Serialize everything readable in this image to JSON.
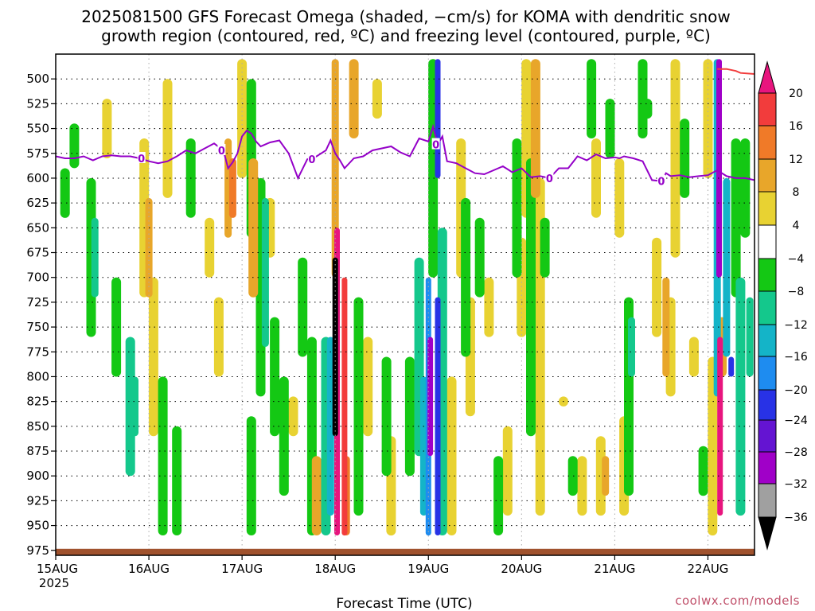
{
  "chart_data": {
    "type": "heatmap",
    "title_lines": [
      "2025081500 GFS Forecast Omega (shaded, −cm/s) for KOMA with dendritic snow",
      "growth region (contoured, red, ºC) and freezing level (contoured, purple, ºC)"
    ],
    "xlabel": "Forecast Time (UTC)",
    "x_ticks": [
      "15AUG",
      "16AUG",
      "17AUG",
      "18AUG",
      "19AUG",
      "20AUG",
      "21AUG",
      "22AUG"
    ],
    "x_year": "2025",
    "x_range_days": [
      0,
      7.5
    ],
    "y_ticks": [
      500,
      525,
      550,
      575,
      600,
      625,
      650,
      675,
      700,
      725,
      750,
      775,
      800,
      825,
      850,
      875,
      900,
      925,
      950,
      975
    ],
    "y_range_hpa": [
      475,
      980
    ],
    "y_unit": "hPa",
    "colorbar": {
      "labels": [
        "20",
        "16",
        "12",
        "8",
        "4",
        "−4",
        "−8",
        "−12",
        "−16",
        "−20",
        "−24",
        "−28",
        "−32",
        "−36"
      ],
      "levels": [
        20,
        16,
        12,
        8,
        4,
        -4,
        -8,
        -12,
        -16,
        -20,
        -24,
        -28,
        -32,
        -36
      ],
      "colors": {
        "gt20": "#e8157e",
        "16_20": "#f23c3c",
        "12_16": "#f07a28",
        "8_12": "#e8a62a",
        "4_8": "#e8d232",
        "m4_4": "#ffffff",
        "m8_m4": "#14c814",
        "m12_m8": "#14c88c",
        "m16_m12": "#14b4c8",
        "m20_m16": "#1e8cf0",
        "m24_m20": "#2832e6",
        "m28_m24": "#6414d2",
        "m32_m28": "#a000c8",
        "m36_m32": "#a0a0a0",
        "lt_m36": "#000000"
      }
    },
    "freezing_level": {
      "label": "0",
      "color": "#9400c8",
      "days": [
        0,
        0.1,
        0.2,
        0.3,
        0.4,
        0.5,
        0.6,
        0.7,
        0.8,
        0.9,
        1.0,
        1.1,
        1.2,
        1.3,
        1.4,
        1.5,
        1.6,
        1.7,
        1.8,
        1.85,
        1.9,
        1.95,
        2.0,
        2.05,
        2.1,
        2.15,
        2.2,
        2.3,
        2.4,
        2.5,
        2.6,
        2.7,
        2.8,
        2.9,
        2.95,
        3.0,
        3.05,
        3.1,
        3.2,
        3.3,
        3.4,
        3.5,
        3.6,
        3.7,
        3.8,
        3.9,
        4.0,
        4.05,
        4.1,
        4.15,
        4.2,
        4.3,
        4.4,
        4.5,
        4.6,
        4.7,
        4.8,
        4.9,
        5.0,
        5.1,
        5.2,
        5.3,
        5.4,
        5.5,
        5.6,
        5.7,
        5.8,
        5.9,
        6.0,
        6.05,
        6.1,
        6.2,
        6.3,
        6.4,
        6.5,
        6.55,
        6.6,
        6.7,
        6.8,
        6.9,
        7.0,
        7.1,
        7.2,
        7.3,
        7.4,
        7.5
      ],
      "pressure_hpa": [
        578,
        580,
        580,
        578,
        582,
        578,
        577,
        578,
        578,
        580,
        583,
        585,
        583,
        578,
        572,
        575,
        570,
        565,
        572,
        590,
        584,
        575,
        558,
        552,
        555,
        563,
        568,
        564,
        562,
        575,
        600,
        581,
        578,
        572,
        562,
        575,
        582,
        590,
        580,
        578,
        572,
        570,
        568,
        574,
        578,
        560,
        563,
        548,
        566,
        558,
        583,
        585,
        590,
        595,
        596,
        592,
        588,
        594,
        590,
        599,
        598,
        600,
        590,
        590,
        578,
        582,
        576,
        580,
        579,
        580,
        578,
        580,
        583,
        602,
        603,
        595,
        598,
        597,
        599,
        598,
        597,
        592,
        598,
        600,
        600,
        602
      ]
    },
    "dgz_contour": {
      "color": "#f23c3c",
      "days": [
        7.1,
        7.2,
        7.3,
        7.35,
        7.5
      ],
      "pressure_hpa": [
        490,
        490,
        492,
        494,
        495
      ]
    },
    "surface": {
      "color": "#a0522d",
      "pressure_hpa": 975
    },
    "omega_features": [
      {
        "day": 0.1,
        "p1": 590,
        "p2": 640,
        "v": -6
      },
      {
        "day": 0.2,
        "p1": 545,
        "p2": 590,
        "v": -6
      },
      {
        "day": 0.38,
        "p1": 600,
        "p2": 760,
        "v": -6
      },
      {
        "day": 0.42,
        "p1": 640,
        "p2": 720,
        "v": -10
      },
      {
        "day": 0.55,
        "p1": 520,
        "p2": 580,
        "v": 5
      },
      {
        "day": 0.65,
        "p1": 700,
        "p2": 800,
        "v": -7
      },
      {
        "day": 0.8,
        "p1": 760,
        "p2": 900,
        "v": -8
      },
      {
        "day": 0.85,
        "p1": 800,
        "p2": 860,
        "v": -10
      },
      {
        "day": 0.95,
        "p1": 560,
        "p2": 720,
        "v": 7
      },
      {
        "day": 1.0,
        "p1": 620,
        "p2": 720,
        "v": 11
      },
      {
        "day": 1.05,
        "p1": 700,
        "p2": 860,
        "v": 5
      },
      {
        "day": 1.15,
        "p1": 800,
        "p2": 960,
        "v": -6
      },
      {
        "day": 1.2,
        "p1": 500,
        "p2": 620,
        "v": 5
      },
      {
        "day": 1.3,
        "p1": 850,
        "p2": 960,
        "v": -6
      },
      {
        "day": 1.45,
        "p1": 560,
        "p2": 640,
        "v": -6
      },
      {
        "day": 1.65,
        "p1": 640,
        "p2": 700,
        "v": 5
      },
      {
        "day": 1.75,
        "p1": 720,
        "p2": 800,
        "v": 5
      },
      {
        "day": 1.85,
        "p1": 560,
        "p2": 660,
        "v": 10
      },
      {
        "day": 1.9,
        "p1": 580,
        "p2": 640,
        "v": 13
      },
      {
        "day": 2.0,
        "p1": 480,
        "p2": 600,
        "v": 5
      },
      {
        "day": 2.1,
        "p1": 500,
        "p2": 660,
        "v": -6
      },
      {
        "day": 2.12,
        "p1": 580,
        "p2": 720,
        "v": 8
      },
      {
        "day": 2.1,
        "p1": 840,
        "p2": 960,
        "v": -6
      },
      {
        "day": 2.2,
        "p1": 600,
        "p2": 820,
        "v": -7
      },
      {
        "day": 2.25,
        "p1": 620,
        "p2": 770,
        "v": -10
      },
      {
        "day": 2.3,
        "p1": 620,
        "p2": 680,
        "v": 5
      },
      {
        "day": 2.35,
        "p1": 740,
        "p2": 860,
        "v": -7
      },
      {
        "day": 2.45,
        "p1": 800,
        "p2": 920,
        "v": -6
      },
      {
        "day": 2.55,
        "p1": 820,
        "p2": 860,
        "v": 5
      },
      {
        "day": 2.65,
        "p1": 680,
        "p2": 780,
        "v": -7
      },
      {
        "day": 2.75,
        "p1": 760,
        "p2": 960,
        "v": -6
      },
      {
        "day": 2.8,
        "p1": 880,
        "p2": 960,
        "v": 8
      },
      {
        "day": 2.9,
        "p1": 760,
        "p2": 960,
        "v": -8
      },
      {
        "day": 2.95,
        "p1": 760,
        "p2": 940,
        "v": -14
      },
      {
        "day": 3.0,
        "p1": 480,
        "p2": 700,
        "v": 11
      },
      {
        "day": 3.02,
        "p1": 650,
        "p2": 960,
        "v": 22
      },
      {
        "day": 3.0,
        "p1": 680,
        "p2": 860,
        "v": -38
      },
      {
        "day": 3.1,
        "p1": 700,
        "p2": 960,
        "v": 16
      },
      {
        "day": 3.12,
        "p1": 880,
        "p2": 960,
        "v": 12
      },
      {
        "day": 3.2,
        "p1": 480,
        "p2": 560,
        "v": 8
      },
      {
        "day": 3.25,
        "p1": 720,
        "p2": 940,
        "v": -6
      },
      {
        "day": 3.35,
        "p1": 760,
        "p2": 860,
        "v": 5
      },
      {
        "day": 3.45,
        "p1": 500,
        "p2": 540,
        "v": 5
      },
      {
        "day": 3.55,
        "p1": 780,
        "p2": 900,
        "v": -6
      },
      {
        "day": 3.6,
        "p1": 860,
        "p2": 960,
        "v": 5
      },
      {
        "day": 3.8,
        "p1": 780,
        "p2": 900,
        "v": -6
      },
      {
        "day": 3.9,
        "p1": 680,
        "p2": 880,
        "v": -8
      },
      {
        "day": 3.95,
        "p1": 800,
        "p2": 940,
        "v": -12
      },
      {
        "day": 4.0,
        "p1": 700,
        "p2": 960,
        "v": -17
      },
      {
        "day": 4.02,
        "p1": 760,
        "p2": 880,
        "v": -28
      },
      {
        "day": 4.05,
        "p1": 480,
        "p2": 700,
        "v": -7
      },
      {
        "day": 4.1,
        "p1": 720,
        "p2": 960,
        "v": -20
      },
      {
        "day": 4.1,
        "p1": 480,
        "p2": 600,
        "v": -20
      },
      {
        "day": 4.15,
        "p1": 650,
        "p2": 960,
        "v": -9
      },
      {
        "day": 4.25,
        "p1": 800,
        "p2": 960,
        "v": 5
      },
      {
        "day": 4.35,
        "p1": 560,
        "p2": 700,
        "v": 5
      },
      {
        "day": 4.4,
        "p1": 620,
        "p2": 780,
        "v": -6
      },
      {
        "day": 4.45,
        "p1": 720,
        "p2": 840,
        "v": 5
      },
      {
        "day": 4.55,
        "p1": 640,
        "p2": 720,
        "v": -6
      },
      {
        "day": 4.65,
        "p1": 700,
        "p2": 760,
        "v": 5
      },
      {
        "day": 4.75,
        "p1": 880,
        "p2": 960,
        "v": -6
      },
      {
        "day": 4.85,
        "p1": 850,
        "p2": 940,
        "v": 5
      },
      {
        "day": 4.95,
        "p1": 560,
        "p2": 700,
        "v": -6
      },
      {
        "day": 5.0,
        "p1": 660,
        "p2": 760,
        "v": 5
      },
      {
        "day": 5.05,
        "p1": 480,
        "p2": 640,
        "v": 6
      },
      {
        "day": 5.1,
        "p1": 580,
        "p2": 860,
        "v": -6
      },
      {
        "day": 5.15,
        "p1": 480,
        "p2": 620,
        "v": 9
      },
      {
        "day": 5.2,
        "p1": 600,
        "p2": 940,
        "v": 5
      },
      {
        "day": 5.25,
        "p1": 640,
        "p2": 700,
        "v": -6
      },
      {
        "day": 5.45,
        "p1": 820,
        "p2": 830,
        "v": 5
      },
      {
        "day": 5.55,
        "p1": 880,
        "p2": 920,
        "v": -6
      },
      {
        "day": 5.65,
        "p1": 880,
        "p2": 940,
        "v": 5
      },
      {
        "day": 5.75,
        "p1": 480,
        "p2": 560,
        "v": -6
      },
      {
        "day": 5.8,
        "p1": 560,
        "p2": 640,
        "v": 5
      },
      {
        "day": 5.85,
        "p1": 860,
        "p2": 940,
        "v": 5
      },
      {
        "day": 5.9,
        "p1": 880,
        "p2": 920,
        "v": 11
      },
      {
        "day": 5.95,
        "p1": 520,
        "p2": 580,
        "v": -6
      },
      {
        "day": 6.05,
        "p1": 580,
        "p2": 660,
        "v": 5
      },
      {
        "day": 6.1,
        "p1": 840,
        "p2": 940,
        "v": 5
      },
      {
        "day": 6.15,
        "p1": 720,
        "p2": 920,
        "v": -6
      },
      {
        "day": 6.18,
        "p1": 740,
        "p2": 800,
        "v": -10
      },
      {
        "day": 6.3,
        "p1": 480,
        "p2": 560,
        "v": -6
      },
      {
        "day": 6.35,
        "p1": 520,
        "p2": 540,
        "v": -6
      },
      {
        "day": 6.45,
        "p1": 660,
        "p2": 760,
        "v": 6
      },
      {
        "day": 6.55,
        "p1": 700,
        "p2": 800,
        "v": 10
      },
      {
        "day": 6.6,
        "p1": 720,
        "p2": 820,
        "v": 5
      },
      {
        "day": 6.65,
        "p1": 480,
        "p2": 680,
        "v": 5
      },
      {
        "day": 6.75,
        "p1": 540,
        "p2": 620,
        "v": -6
      },
      {
        "day": 6.85,
        "p1": 760,
        "p2": 800,
        "v": 5
      },
      {
        "day": 6.95,
        "p1": 870,
        "p2": 920,
        "v": -6
      },
      {
        "day": 7.0,
        "p1": 480,
        "p2": 600,
        "v": 5
      },
      {
        "day": 7.05,
        "p1": 780,
        "p2": 960,
        "v": 6
      },
      {
        "day": 7.1,
        "p1": 480,
        "p2": 820,
        "v": -12
      },
      {
        "day": 7.12,
        "p1": 480,
        "p2": 700,
        "v": -30
      },
      {
        "day": 7.13,
        "p1": 760,
        "p2": 940,
        "v": 22
      },
      {
        "day": 7.15,
        "p1": 740,
        "p2": 800,
        "v": 8
      },
      {
        "day": 7.2,
        "p1": 600,
        "p2": 780,
        "v": -14
      },
      {
        "day": 7.25,
        "p1": 780,
        "p2": 800,
        "v": -22
      },
      {
        "day": 7.3,
        "p1": 560,
        "p2": 720,
        "v": -7
      },
      {
        "day": 7.35,
        "p1": 700,
        "p2": 940,
        "v": -8
      },
      {
        "day": 7.4,
        "p1": 560,
        "p2": 660,
        "v": -7
      },
      {
        "day": 7.45,
        "p1": 720,
        "p2": 800,
        "v": -10
      }
    ]
  },
  "credit": "coolwx.com/models"
}
